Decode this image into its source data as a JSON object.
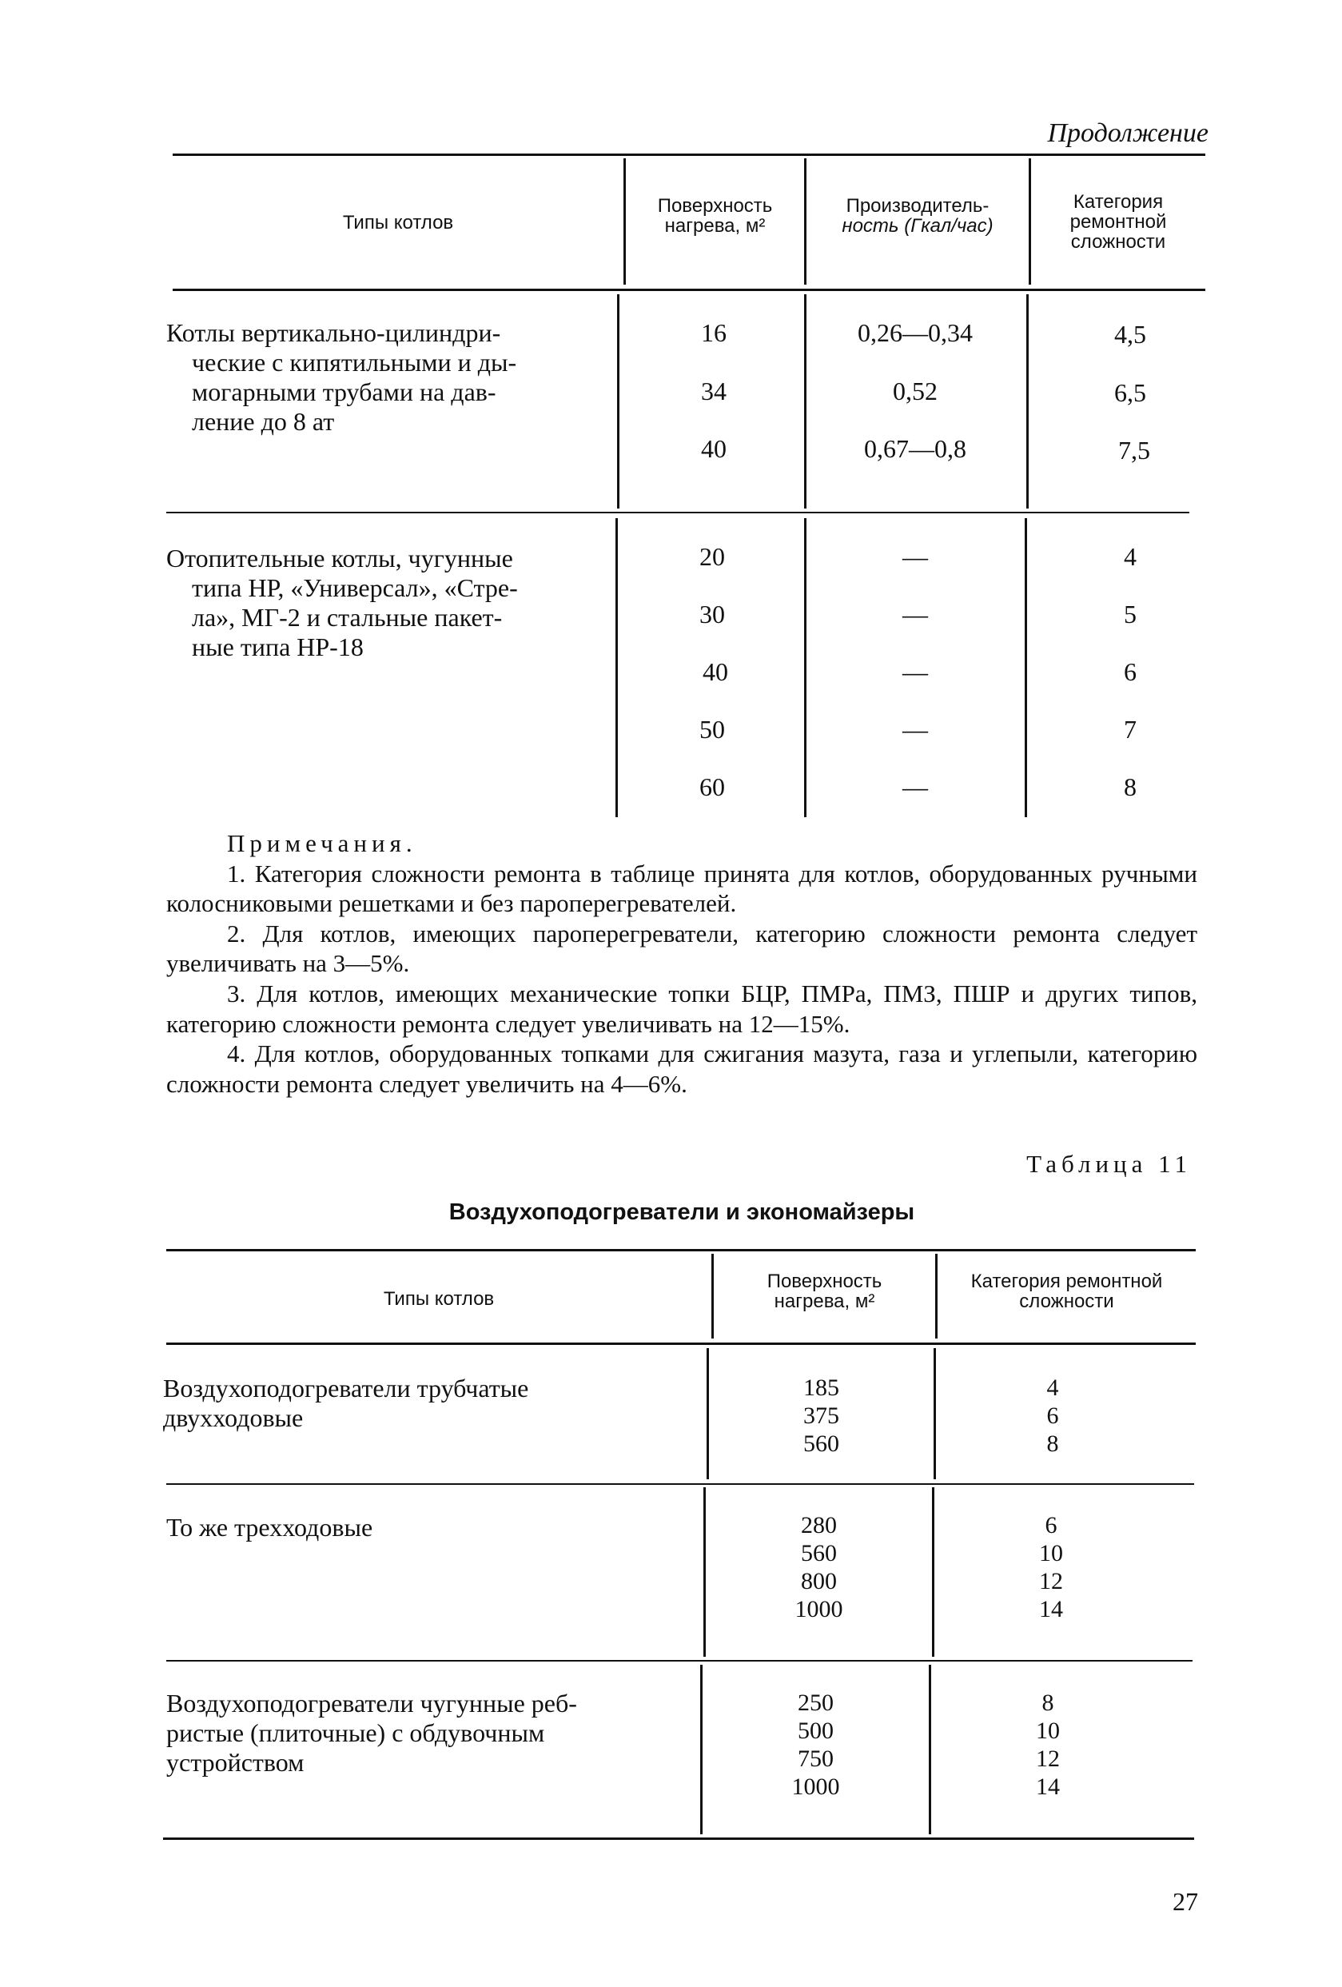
{
  "continuation_label": "Продолжение",
  "table1": {
    "headers": [
      "Типы котлов",
      "Поверхность нагрева, м²",
      "Производитель-ность (Гкал/час)",
      "Категория ремонтной сложности"
    ],
    "header_lines": {
      "col2": [
        "Поверхность",
        "нагрева, м²"
      ],
      "col3": [
        "Производитель-",
        "ность (Гкал/час)"
      ],
      "col4": [
        "Категория",
        "ремонтной",
        "сложности"
      ]
    },
    "groups": [
      {
        "type": "Котлы вертикально-цилиндрические с кипятильными и дымогарными трубами на давление до 8 ат",
        "type_lines": [
          "Котлы вертикально-цилиндри-",
          "ческие с кипятильными и ды-",
          "могарными трубами на дав-",
          "ление до 8 ат"
        ],
        "rows": [
          {
            "surface": "16",
            "capacity": "0,26—0,34",
            "category": "4,5"
          },
          {
            "surface": "34",
            "capacity": "0,52",
            "category": "6,5"
          },
          {
            "surface": "40",
            "capacity": "0,67—0,8",
            "category": "7,5"
          }
        ]
      },
      {
        "type": "Отопительные котлы, чугунные типа НР, «Универсал», «Стрела», МГ-2 и стальные пакетные типа НР-18",
        "type_lines": [
          "Отопительные котлы, чугунные",
          "типа НР, «Универсал», «Стре-",
          "ла», МГ-2 и стальные пакет-",
          "ные типа НР-18"
        ],
        "rows": [
          {
            "surface": "20",
            "capacity": "—",
            "category": "4"
          },
          {
            "surface": "30",
            "capacity": "—",
            "category": "5"
          },
          {
            "surface": "40",
            "capacity": "—",
            "category": "6"
          },
          {
            "surface": "50",
            "capacity": "—",
            "category": "7"
          },
          {
            "surface": "60",
            "capacity": "—",
            "category": "8"
          }
        ]
      }
    ]
  },
  "notes": {
    "heading": "Примечания.",
    "items": [
      "1. Категория сложности ремонта в таблице принята для котлов, оборудованных ручными колосниковыми решетками и без пароперегревателей.",
      "2. Для котлов, имеющих пароперегреватели, категорию сложности ремонта следует увеличивать на 3—5%.",
      "3. Для котлов, имеющих механические топки БЦР, ПМРа, ПМЗ, ПШР и других типов, категорию сложности ремонта следует увеличивать на 12—15%.",
      "4. Для котлов, оборудованных топками для сжигания мазута, газа и углепыли, категорию сложности ремонта следует увеличить на 4—6%."
    ]
  },
  "table2": {
    "label": "Таблица 11",
    "title": "Воздухоподогреватели и экономайзеры",
    "headers": [
      "Типы котлов",
      "Поверхность нагрева, м²",
      "Категория ремонтной сложности"
    ],
    "header_lines": {
      "col2": [
        "Поверхность",
        "нагрева, м²"
      ],
      "col3": [
        "Категория ремонтной",
        "сложности"
      ]
    },
    "groups": [
      {
        "type": "Воздухоподогреватели трубчатые двухходовые",
        "type_lines": [
          "Воздухоподогреватели трубчатые",
          "двухходовые"
        ],
        "surface": [
          "185",
          "375",
          "560"
        ],
        "category": [
          "4",
          "6",
          "8"
        ]
      },
      {
        "type": "То же трехходовые",
        "type_lines": [
          "То же трехходовые"
        ],
        "surface": [
          "280",
          "560",
          "800",
          "1000"
        ],
        "category": [
          "6",
          "10",
          "12",
          "14"
        ]
      },
      {
        "type": "Воздухоподогреватели чугунные ребристые (плиточные) с обдувочным устройством",
        "type_lines": [
          "Воздухоподогреватели чугунные реб-",
          "ристые (плиточные) с обдувочным",
          "устройством"
        ],
        "surface": [
          "250",
          "500",
          "750",
          "1000"
        ],
        "category": [
          "8",
          "10",
          "12",
          "14"
        ]
      }
    ]
  },
  "page_number": "27"
}
